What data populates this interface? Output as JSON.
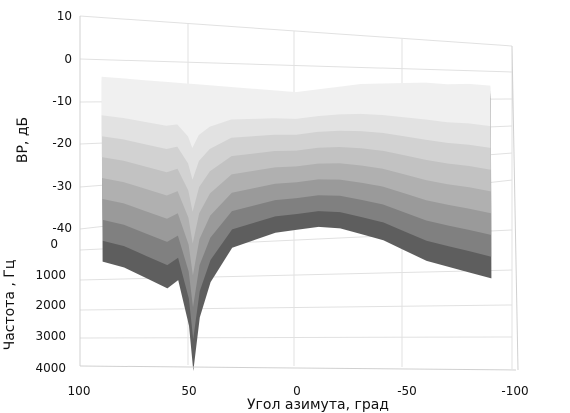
{
  "chart_data": {
    "type": "surface3d",
    "view": "oblique",
    "grid": true,
    "colormap": "gray",
    "xlabel": "Угол азимута, град",
    "ylabel": "Частота , Гц",
    "zlabel": "ВР, дБ",
    "xlim": [
      100,
      -100
    ],
    "ylim": [
      0,
      4000
    ],
    "zlim": [
      -40,
      10
    ],
    "xticks": [
      "100",
      "50",
      "0",
      "-50",
      "-100"
    ],
    "yticks": [
      "0",
      "1000",
      "2000",
      "3000",
      "4000"
    ],
    "zticks": [
      "10",
      "0",
      "-10",
      "-20",
      "-30",
      "-40"
    ],
    "azimuth_range": [
      90,
      -90
    ],
    "surface_profile": {
      "azimuth": [
        90,
        80,
        70,
        60,
        55,
        50,
        48,
        45,
        40,
        30,
        20,
        10,
        0,
        -10,
        -20,
        -30,
        -40,
        -50,
        -60,
        -70,
        -80,
        -90
      ],
      "response_low_freq_db": [
        -3,
        -3,
        -3,
        -3,
        -3,
        -3,
        -3,
        -3,
        -3,
        -3,
        -3,
        -3,
        -3,
        -2,
        -1,
        0,
        0.5,
        1,
        1.5,
        1.5,
        2,
        2
      ],
      "response_high_freq_db": [
        -37,
        -38,
        -40,
        -42,
        -40,
        -50,
        -60,
        -48,
        -40,
        -32,
        -30,
        -28,
        -27,
        -26,
        -26,
        -27,
        -28,
        -30,
        -32,
        -33,
        -34,
        -35
      ]
    }
  }
}
